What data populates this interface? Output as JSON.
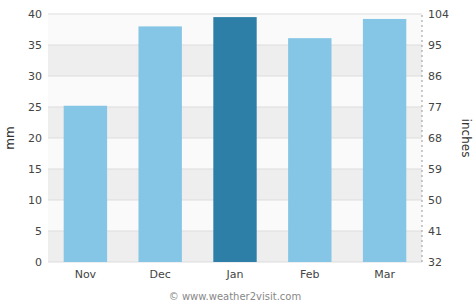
{
  "chart_data": {
    "type": "bar",
    "categories": [
      "Nov",
      "Dec",
      "Jan",
      "Feb",
      "Mar"
    ],
    "values": [
      25.2,
      38.0,
      39.5,
      36.1,
      39.2
    ],
    "colors": [
      "#85c5e5",
      "#85c5e5",
      "#2e7fa8",
      "#85c5e5",
      "#85c5e5"
    ],
    "ylabel": "mm",
    "y2label": "inches",
    "ylim": [
      0,
      40
    ],
    "yticks": [
      0,
      5,
      10,
      15,
      20,
      25,
      30,
      35,
      40
    ],
    "y2lim": [
      32,
      104
    ],
    "y2ticks": [
      32,
      41,
      50,
      59,
      68,
      77,
      86,
      95,
      104
    ],
    "grid": true,
    "annotations": [
      "© www.weather2visit.com"
    ]
  }
}
